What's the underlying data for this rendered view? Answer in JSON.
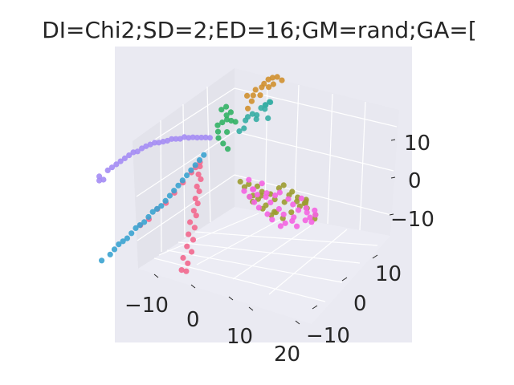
{
  "chart_data": {
    "type": "scatter",
    "projection": "3d",
    "title": "DI=Chi2;SD=2;ED=16;GM=rand;GA=[",
    "xlabel": "",
    "ylabel": "",
    "zlabel": "",
    "grid": true,
    "legend": "none",
    "x_ticks": [
      "−10",
      "0",
      "10",
      "20"
    ],
    "y_ticks": [
      "−10",
      "0",
      "10"
    ],
    "z_ticks": [
      "−10",
      "0",
      "10"
    ],
    "xlim": [
      -15,
      22
    ],
    "ylim": [
      -15,
      18
    ],
    "zlim": [
      -14,
      18
    ],
    "colors": {
      "pane_bg": "#eaeaf2",
      "pane_side": "#e3e3eb",
      "pane_floor": "#ececf4",
      "grid": "#ffffff",
      "text": "#262626",
      "purple": "#a48cf4",
      "green": "#32b165",
      "teal": "#36ada4",
      "orange": "#d0902f",
      "olive": "#9c9c31",
      "magenta": "#f464e1",
      "pink": "#f2688e",
      "blue": "#3ba3d0"
    },
    "series": [
      {
        "color_key": "purple",
        "points": [
          [
            -14,
            -9,
            4
          ],
          [
            -13,
            -8,
            5
          ],
          [
            -12,
            -7,
            6
          ],
          [
            -11,
            -6,
            7
          ],
          [
            -10,
            -5,
            8
          ],
          [
            -9,
            -4,
            8.5
          ],
          [
            -8,
            -3,
            9
          ],
          [
            -7,
            -2,
            9
          ],
          [
            -6,
            -1,
            9
          ],
          [
            -5,
            0,
            9
          ],
          [
            -4,
            1,
            9
          ],
          [
            -3,
            2,
            8.5
          ],
          [
            -2,
            3,
            8
          ],
          [
            -1,
            4,
            7.5
          ],
          [
            -13.5,
            -8.5,
            3
          ],
          [
            -12.5,
            -7.5,
            5.5
          ],
          [
            -11.5,
            -6.5,
            6.5
          ],
          [
            -10.5,
            -5.5,
            7.5
          ],
          [
            -9.5,
            -4.5,
            8
          ],
          [
            -8.5,
            -3.5,
            8.8
          ],
          [
            -7.5,
            -2.5,
            9.2
          ],
          [
            -6.5,
            -1.5,
            9
          ],
          [
            -5.5,
            -0.5,
            9.2
          ],
          [
            -4.5,
            0.5,
            8.8
          ],
          [
            -3.5,
            1.5,
            8.6
          ],
          [
            -2.5,
            2.5,
            8.2
          ],
          [
            -1.5,
            3.5,
            7.8
          ],
          [
            -14,
            -9,
            3
          ]
        ]
      },
      {
        "color_key": "green",
        "points": [
          [
            -1,
            6,
            9
          ],
          [
            0,
            6,
            10
          ],
          [
            1,
            6,
            11
          ],
          [
            -1,
            7,
            12
          ],
          [
            0,
            7,
            13
          ],
          [
            1,
            7,
            12
          ],
          [
            2,
            7,
            10
          ],
          [
            -0.5,
            5.5,
            8
          ],
          [
            0.5,
            6.5,
            11.5
          ],
          [
            1.5,
            6.5,
            10.5
          ],
          [
            0,
            5,
            7
          ],
          [
            1,
            5,
            6
          ],
          [
            2,
            5,
            5
          ],
          [
            1,
            6,
            8
          ]
        ]
      },
      {
        "color_key": "teal",
        "points": [
          [
            3,
            9,
            10
          ],
          [
            4,
            9,
            11
          ],
          [
            5,
            10,
            12
          ],
          [
            6,
            10,
            13
          ],
          [
            7,
            10,
            14
          ],
          [
            6,
            11,
            13
          ],
          [
            5,
            11,
            11
          ],
          [
            4,
            10,
            9
          ],
          [
            3,
            8,
            8
          ],
          [
            2,
            8,
            7
          ],
          [
            2.5,
            9,
            9
          ],
          [
            5.5,
            10.5,
            12.5
          ],
          [
            4.5,
            9.5,
            10.5
          ],
          [
            6.5,
            10,
            10
          ]
        ]
      },
      {
        "color_key": "orange",
        "points": [
          [
            2,
            10,
            14
          ],
          [
            3,
            11,
            15
          ],
          [
            4,
            12,
            16
          ],
          [
            5,
            13,
            17
          ],
          [
            6,
            13,
            17.5
          ],
          [
            7,
            13,
            17
          ],
          [
            3,
            10,
            13
          ],
          [
            4,
            11,
            14
          ],
          [
            5,
            12,
            15.5
          ],
          [
            6,
            12,
            16.5
          ],
          [
            2.5,
            11,
            13.5
          ],
          [
            3.5,
            12,
            15
          ],
          [
            3,
            9,
            12
          ],
          [
            4.5,
            12.5,
            16.8
          ]
        ]
      },
      {
        "color_key": "olive",
        "points": [
          [
            8,
            1,
            2
          ],
          [
            9,
            2,
            1
          ],
          [
            10,
            3,
            0
          ],
          [
            11,
            3,
            -1
          ],
          [
            12,
            4,
            -2
          ],
          [
            13,
            5,
            -1
          ],
          [
            14,
            5,
            0
          ],
          [
            15,
            6,
            -2
          ],
          [
            16,
            6,
            -4
          ],
          [
            17,
            7,
            -5
          ],
          [
            16,
            8,
            -6
          ],
          [
            15,
            8,
            -7
          ],
          [
            14,
            7,
            -8
          ],
          [
            13,
            6,
            -9
          ],
          [
            12,
            5,
            -7
          ],
          [
            11,
            4,
            -5
          ],
          [
            10,
            4,
            -3
          ],
          [
            9,
            3,
            -4
          ],
          [
            18,
            6,
            -3
          ],
          [
            19,
            5,
            -4
          ],
          [
            20,
            6,
            -6
          ],
          [
            19,
            7,
            -8
          ],
          [
            17,
            5,
            -2
          ],
          [
            16,
            4,
            -1
          ],
          [
            15,
            4,
            -3
          ],
          [
            14,
            3,
            -5
          ],
          [
            13,
            3,
            -6
          ],
          [
            12,
            2,
            -4
          ],
          [
            11,
            2,
            -2
          ],
          [
            10,
            1,
            -1
          ],
          [
            8.5,
            1.5,
            0.5
          ],
          [
            9.5,
            2.5,
            -2
          ],
          [
            12.5,
            4.5,
            -3.5
          ],
          [
            17.5,
            6.5,
            -4
          ]
        ]
      },
      {
        "color_key": "magenta",
        "points": [
          [
            9,
            2,
            2
          ],
          [
            10,
            2,
            0
          ],
          [
            11,
            3,
            1
          ],
          [
            12,
            3,
            -1
          ],
          [
            13,
            4,
            -2
          ],
          [
            14,
            4,
            -1
          ],
          [
            15,
            5,
            -3
          ],
          [
            16,
            5,
            -4
          ],
          [
            17,
            6,
            -3
          ],
          [
            18,
            6,
            -5
          ],
          [
            19,
            7,
            -6
          ],
          [
            18,
            7,
            -8
          ],
          [
            17,
            7,
            -9
          ],
          [
            16,
            6,
            -10
          ],
          [
            15,
            6,
            -9
          ],
          [
            14,
            5,
            -7
          ],
          [
            13,
            5,
            -6
          ],
          [
            12,
            4,
            -4
          ],
          [
            11,
            4,
            -3
          ],
          [
            10,
            3,
            -2
          ],
          [
            9,
            3,
            -1
          ],
          [
            8,
            2,
            -1
          ],
          [
            19,
            5,
            -5
          ],
          [
            18,
            4,
            -4
          ],
          [
            17,
            4,
            -6
          ],
          [
            16,
            3,
            -7
          ],
          [
            15,
            3,
            -8
          ],
          [
            14,
            2,
            -6
          ],
          [
            13,
            2,
            -5
          ],
          [
            12,
            1,
            -3
          ],
          [
            11,
            1,
            -2
          ],
          [
            10,
            1,
            -1
          ],
          [
            20,
            6,
            -6
          ],
          [
            20,
            5,
            -7
          ]
        ]
      },
      {
        "color_key": "pink",
        "points": [
          [
            1,
            -1,
            6
          ],
          [
            1.5,
            -2,
            4
          ],
          [
            2,
            -3,
            2
          ],
          [
            2.5,
            -4,
            0
          ],
          [
            3,
            -5,
            -2
          ],
          [
            3,
            -6,
            -4
          ],
          [
            3.5,
            -7,
            -6
          ],
          [
            4,
            -8,
            -8
          ],
          [
            4,
            -9,
            -10
          ],
          [
            4.5,
            -10,
            -12
          ],
          [
            0,
            -2,
            4
          ],
          [
            -1,
            -3,
            2
          ],
          [
            -2,
            -4,
            0
          ],
          [
            -3,
            -5,
            -2
          ],
          [
            -4,
            -6,
            -3
          ],
          [
            -5,
            -7,
            -5
          ],
          [
            -6,
            -8,
            -6
          ],
          [
            2,
            -2,
            3
          ],
          [
            2.5,
            -3,
            1
          ],
          [
            3,
            -4,
            -1
          ],
          [
            3.5,
            -5,
            -3
          ],
          [
            4,
            -6,
            -5
          ],
          [
            4.5,
            -7,
            -7
          ],
          [
            5,
            -8,
            -9
          ],
          [
            5,
            -9,
            -11
          ],
          [
            5.5,
            -10,
            -12
          ],
          [
            1,
            -1,
            5
          ],
          [
            0.5,
            -1.5,
            5
          ]
        ]
      },
      {
        "color_key": "blue",
        "points": [
          [
            0,
            -1,
            5
          ],
          [
            -1,
            -2,
            3
          ],
          [
            -2,
            -3,
            1
          ],
          [
            -3,
            -4,
            -1
          ],
          [
            -4,
            -5,
            -3
          ],
          [
            -5,
            -6,
            -4
          ],
          [
            -6,
            -7,
            -6
          ],
          [
            -7,
            -8,
            -7
          ],
          [
            -8,
            -9,
            -9
          ],
          [
            -9,
            -10,
            -10
          ],
          [
            -10,
            -11,
            -12
          ],
          [
            -11,
            -12,
            -13
          ],
          [
            1,
            0,
            7
          ],
          [
            0.5,
            -0.5,
            6
          ],
          [
            -0.5,
            -1.5,
            4
          ],
          [
            -1.5,
            -2.5,
            2
          ],
          [
            -2.5,
            -3.5,
            0
          ],
          [
            -3.5,
            -4.5,
            -2
          ],
          [
            -4.5,
            -5.5,
            -3.5
          ],
          [
            -5.5,
            -6.5,
            -5
          ],
          [
            -6.5,
            -7.5,
            -6.5
          ],
          [
            -7.5,
            -8.5,
            -8
          ],
          [
            -8.5,
            -9.5,
            -9.5
          ],
          [
            -9.5,
            -10.5,
            -11
          ]
        ]
      }
    ]
  }
}
